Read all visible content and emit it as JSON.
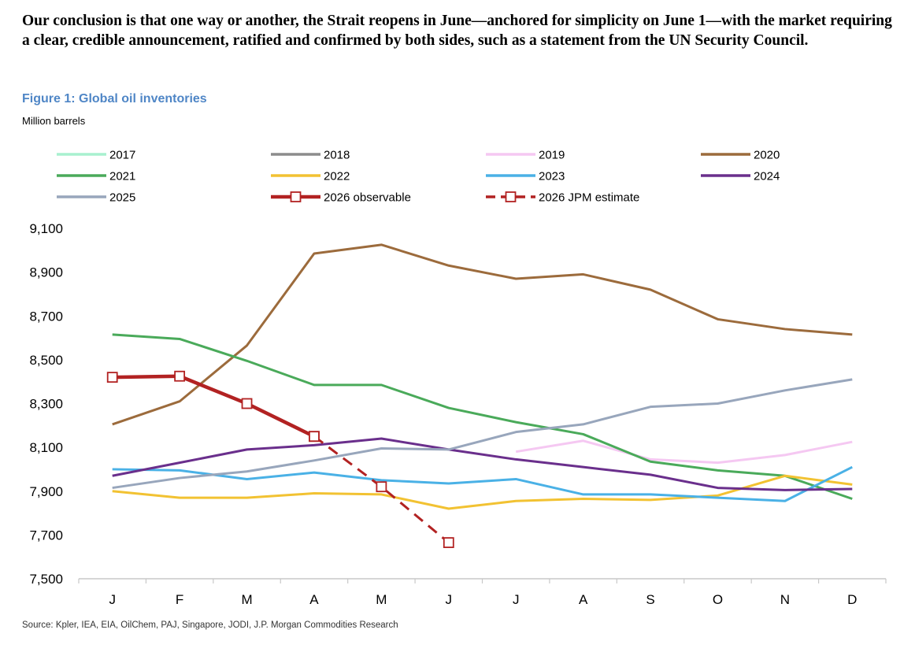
{
  "intro_text": "Our conclusion is that one way or another, the Strait reopens in June—anchored for simplicity on June 1—with the market requiring a clear, credible announcement, ratified and confirmed by both sides, such as a statement from the UN Security Council.",
  "figure_title": "Figure 1: Global oil inventories",
  "units_label": "Million barrels",
  "source_text": "Source: Kpler, IEA, EIA, OilChem, PAJ, Singapore, JODI, J.P. Morgan Commodities Research",
  "chart_data": {
    "type": "line",
    "title": "Figure 1: Global oil inventories",
    "ylabel": "Million barrels",
    "xlabel": "",
    "categories": [
      "J",
      "F",
      "M",
      "A",
      "M",
      "J",
      "J",
      "A",
      "S",
      "O",
      "N",
      "D"
    ],
    "ylim": [
      7500,
      9100
    ],
    "yticks": [
      7500,
      7700,
      7900,
      8100,
      8300,
      8500,
      8700,
      8900,
      9100
    ],
    "ytick_labels": [
      "7,500",
      "7,700",
      "7,900",
      "8,100",
      "8,300",
      "8,500",
      "8,700",
      "8,900",
      "9,100"
    ],
    "grid": false,
    "legend_position": "top",
    "series": [
      {
        "name": "2017",
        "color": "#a8f0cf",
        "values": [
          null,
          null,
          null,
          null,
          null,
          null,
          null,
          null,
          null,
          null,
          null,
          null
        ]
      },
      {
        "name": "2018",
        "color": "#8c8c8c",
        "values": [
          null,
          null,
          null,
          null,
          null,
          null,
          null,
          null,
          null,
          null,
          null,
          null
        ]
      },
      {
        "name": "2019",
        "color": "#f5c8f2",
        "values": [
          null,
          null,
          null,
          null,
          null,
          null,
          8080,
          8130,
          8045,
          8030,
          8065,
          8125
        ]
      },
      {
        "name": "2020",
        "color": "#9c6b3c",
        "values": [
          8205,
          8310,
          8565,
          8985,
          9025,
          8930,
          8870,
          8890,
          8820,
          8685,
          8640,
          8615
        ]
      },
      {
        "name": "2021",
        "color": "#4aaa5a",
        "values": [
          8615,
          8595,
          8495,
          8385,
          8385,
          8280,
          8215,
          8160,
          8035,
          7995,
          7970,
          7865
        ]
      },
      {
        "name": "2022",
        "color": "#f2c232",
        "values": [
          7900,
          7870,
          7870,
          7890,
          7885,
          7820,
          7855,
          7865,
          7860,
          7880,
          7970,
          7930
        ]
      },
      {
        "name": "2023",
        "color": "#4ab1e6",
        "values": [
          8000,
          7995,
          7955,
          7985,
          7950,
          7935,
          7955,
          7885,
          7885,
          7870,
          7855,
          8010
        ]
      },
      {
        "name": "2024",
        "color": "#6a2f8c",
        "values": [
          7970,
          8030,
          8090,
          8110,
          8140,
          8090,
          8045,
          8010,
          7975,
          7915,
          7905,
          7910
        ]
      },
      {
        "name": "2025",
        "color": "#98a6bc",
        "values": [
          7915,
          7960,
          7990,
          8040,
          8095,
          8090,
          8170,
          8205,
          8285,
          8300,
          8360,
          8410
        ]
      },
      {
        "name": "2026 observable",
        "color": "#b22222",
        "style": "solid-bold-markers",
        "values": [
          8420,
          8425,
          8300,
          8150,
          null,
          null,
          null,
          null,
          null,
          null,
          null,
          null
        ]
      },
      {
        "name": "2026 JPM estimate",
        "color": "#b22222",
        "style": "dashed-markers",
        "values": [
          null,
          null,
          null,
          8150,
          7920,
          7665,
          null,
          null,
          null,
          null,
          null,
          null
        ]
      }
    ]
  }
}
